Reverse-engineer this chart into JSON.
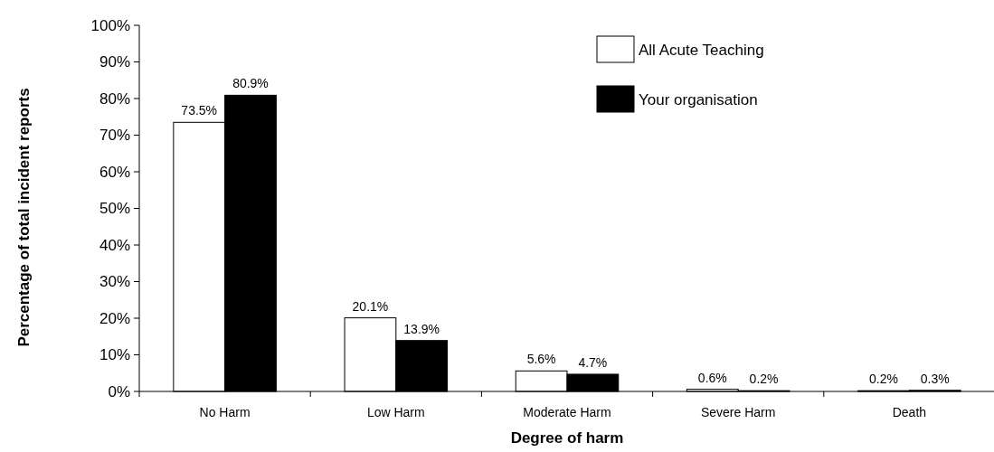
{
  "chart_data": {
    "type": "bar",
    "xlabel": "Degree of harm",
    "ylabel": "Percentage of total incident reports",
    "categories": [
      "No Harm",
      "Low Harm",
      "Moderate Harm",
      "Severe Harm",
      "Death"
    ],
    "series": [
      {
        "name": "All Acute Teaching",
        "color": "#ffffff",
        "values": [
          73.5,
          20.1,
          5.6,
          0.6,
          0.2
        ],
        "value_labels": [
          "73.5%",
          "20.1%",
          "5.6%",
          "0.6%",
          "0.2%"
        ]
      },
      {
        "name": "Your organisation",
        "color": "#000000",
        "values": [
          80.9,
          13.9,
          4.7,
          0.2,
          0.3
        ],
        "value_labels": [
          "80.9%",
          "13.9%",
          "4.7%",
          "0.2%",
          "0.3%"
        ]
      }
    ],
    "ylim": [
      0,
      100
    ],
    "yticks": [
      {
        "value": 0,
        "label": "0%"
      },
      {
        "value": 10,
        "label": "10%"
      },
      {
        "value": 20,
        "label": "20%"
      },
      {
        "value": 30,
        "label": "30%"
      },
      {
        "value": 40,
        "label": "40%"
      },
      {
        "value": 50,
        "label": "50%"
      },
      {
        "value": 60,
        "label": "60%"
      },
      {
        "value": 70,
        "label": "70%"
      },
      {
        "value": 80,
        "label": "80%"
      },
      {
        "value": 90,
        "label": "90%"
      },
      {
        "value": 100,
        "label": "100%"
      }
    ],
    "grid": false,
    "legend": "top right"
  }
}
